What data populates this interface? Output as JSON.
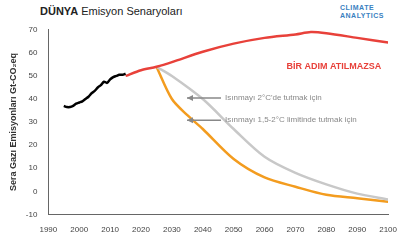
{
  "chart_data": {
    "type": "line",
    "title": "DÜNYA Emisyon Senaryoları",
    "logo": "CLIMATE ANALYTICS",
    "y_label": "Sera Gazı Emisyonları Gt-CO₂eq",
    "xlim": [
      1990,
      2100
    ],
    "xticks": [
      1990,
      2000,
      2010,
      2020,
      2030,
      2040,
      2050,
      2060,
      2070,
      2080,
      2090,
      2100
    ],
    "ylim": [
      -10,
      70
    ],
    "yticks": [
      -10,
      0,
      10,
      20,
      30,
      40,
      50,
      60,
      70
    ],
    "grid": false,
    "series": [
      {
        "color": "#000000",
        "x": [
          1995,
          1996,
          1997,
          1998,
          1999,
          2000,
          2001,
          2002,
          2003,
          2004,
          2005,
          2006,
          2007,
          2008,
          2009,
          2010,
          2011,
          2012,
          2013,
          2014,
          2015
        ],
        "values": [
          37,
          36.5,
          36.5,
          37,
          38,
          38.5,
          39,
          40,
          41,
          42.5,
          43.5,
          45,
          46,
          47.5,
          47,
          48.5,
          49.5,
          50,
          50.5,
          50.5,
          51
        ]
      },
      {
        "name": "BİR ADIM ATILMAZSA",
        "color": "#e8413a",
        "x": [
          2015,
          2020,
          2025,
          2030,
          2040,
          2050,
          2060,
          2070,
          2075,
          2080,
          2090,
          2100
        ],
        "values": [
          50,
          52.5,
          54,
          56,
          60.5,
          64,
          66.5,
          68,
          69,
          68.5,
          66.5,
          64.5
        ]
      },
      {
        "name": "Isınmayı 2°C'de tutmak için",
        "color": "#c8c8c8",
        "x": [
          2025,
          2030,
          2040,
          2050,
          2060,
          2070,
          2080,
          2090,
          2100
        ],
        "values": [
          54,
          50,
          40,
          27,
          15,
          8,
          3,
          -1,
          -3.5
        ]
      },
      {
        "name": "Isınmayı 1,5-2°C limitinde tutmak için",
        "color": "#f39c1f",
        "x": [
          2025,
          2030,
          2035,
          2040,
          2050,
          2060,
          2070,
          2080,
          2090,
          2100
        ],
        "values": [
          54,
          40,
          33,
          27,
          14,
          6,
          2,
          -1.5,
          -3,
          -4.5
        ]
      }
    ]
  }
}
